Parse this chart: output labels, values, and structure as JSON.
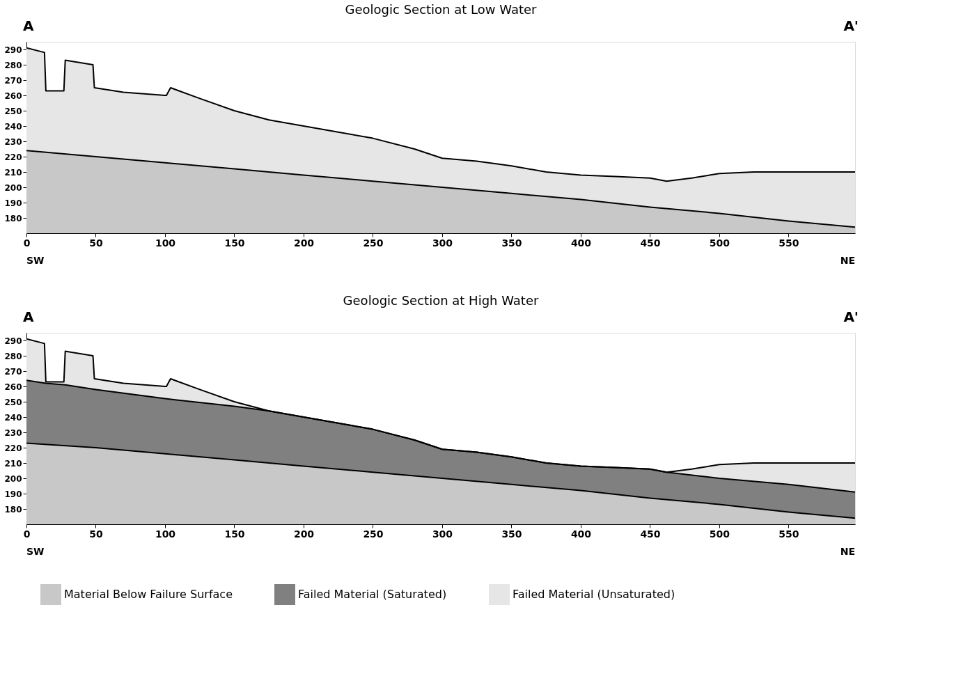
{
  "chart_data": [
    {
      "type": "area",
      "title": "Geologic Section at Low Water",
      "annotations": [
        "A",
        "A'",
        "SW",
        "NE"
      ],
      "xlim": [
        0,
        598
      ],
      "ylim": [
        170,
        295
      ],
      "xticks": [
        0,
        50,
        100,
        150,
        200,
        250,
        300,
        350,
        400,
        450,
        500,
        550
      ],
      "yticks": [
        180,
        190,
        200,
        210,
        220,
        230,
        240,
        250,
        260,
        270,
        280,
        290
      ],
      "grid": false,
      "legend": "bottom",
      "series": [
        {
          "name": "Material Below Failure Surface",
          "color": "#c8c8c8",
          "x": [
            0,
            50,
            100,
            150,
            200,
            250,
            300,
            350,
            400,
            450,
            500,
            550,
            598
          ],
          "values": [
            224,
            220,
            216,
            212,
            208,
            204,
            200,
            196,
            192,
            187,
            183,
            178,
            174
          ]
        },
        {
          "name": "Failed Material (Unsaturated)",
          "color": "#e6e6e6",
          "x": [
            0,
            13,
            14,
            27,
            28,
            48,
            49,
            70,
            100,
            101,
            104,
            125,
            150,
            175,
            200,
            225,
            250,
            280,
            300,
            325,
            350,
            375,
            400,
            425,
            450,
            462,
            480,
            500,
            525,
            550,
            575,
            598
          ],
          "values": [
            291,
            288,
            263,
            263,
            283,
            280,
            265,
            262,
            260,
            260,
            265,
            258,
            250,
            244,
            240,
            236,
            232,
            225,
            219,
            217,
            214,
            210,
            208,
            207,
            206,
            204,
            206,
            209,
            210,
            210,
            210,
            210
          ]
        }
      ]
    },
    {
      "type": "area",
      "title": "Geologic Section at High Water",
      "annotations": [
        "A",
        "A'",
        "SW",
        "NE"
      ],
      "xlim": [
        0,
        598
      ],
      "ylim": [
        170,
        295
      ],
      "xticks": [
        0,
        50,
        100,
        150,
        200,
        250,
        300,
        350,
        400,
        450,
        500,
        550
      ],
      "yticks": [
        180,
        190,
        200,
        210,
        220,
        230,
        240,
        250,
        260,
        270,
        280,
        290
      ],
      "grid": false,
      "legend": "bottom",
      "series": [
        {
          "name": "Material Below Failure Surface",
          "color": "#c8c8c8",
          "x": [
            0,
            50,
            100,
            150,
            200,
            250,
            300,
            350,
            400,
            450,
            500,
            550,
            598
          ],
          "values": [
            223,
            220,
            216,
            212,
            208,
            204,
            200,
            196,
            192,
            187,
            183,
            178,
            174
          ]
        },
        {
          "name": "Failed Material (Saturated)",
          "color": "#808080",
          "x": [
            0,
            14,
            28,
            50,
            100,
            150,
            175,
            200,
            225,
            250,
            280,
            300,
            325,
            350,
            375,
            400,
            425,
            450,
            462,
            500,
            550,
            598
          ],
          "values": [
            264,
            262,
            261,
            258,
            252,
            247,
            244,
            240,
            236,
            232,
            225,
            219,
            217,
            214,
            210,
            208,
            207,
            206,
            204,
            200,
            196,
            191
          ]
        },
        {
          "name": "Failed Material (Unsaturated)",
          "color": "#e6e6e6",
          "x": [
            0,
            13,
            14,
            27,
            28,
            48,
            49,
            70,
            100,
            101,
            104,
            125,
            150,
            175,
            200,
            225,
            250,
            280,
            300,
            325,
            350,
            375,
            400,
            425,
            450,
            462,
            480,
            500,
            525,
            550,
            575,
            598
          ],
          "values": [
            291,
            288,
            263,
            263,
            283,
            280,
            265,
            262,
            260,
            260,
            265,
            258,
            250,
            244,
            240,
            236,
            232,
            225,
            219,
            217,
            214,
            210,
            208,
            207,
            206,
            204,
            206,
            209,
            210,
            210,
            210,
            210
          ]
        }
      ]
    }
  ]
}
